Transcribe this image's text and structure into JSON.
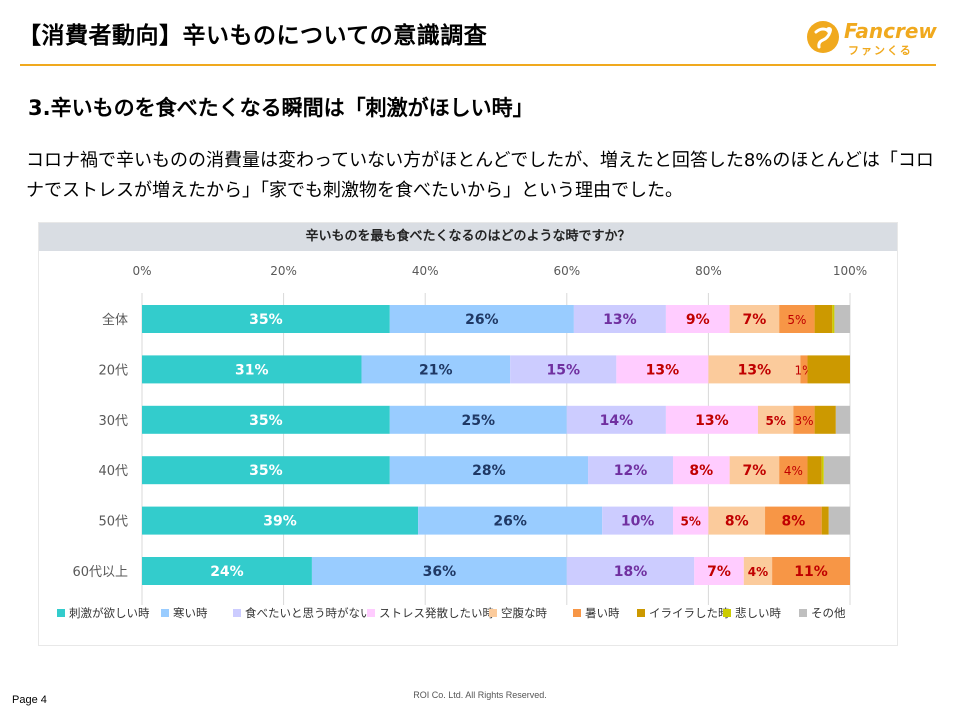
{
  "header": {
    "title": "【消費者動向】辛いものについての意識調査"
  },
  "logo": {
    "text": "Fancrew",
    "sub": "ファンくる",
    "accent": "#f0a91e"
  },
  "section": {
    "title": "3.辛いものを食べたくなる瞬間は「刺激がほしい時」"
  },
  "description": "コロナ禍で辛いものの消費量は変わっていない方がほとんどでしたが、増えたと回答した8%のほとんどは「コロナでストレスが増えたから」「家でも刺激物を食べたいから」という理由でした。",
  "footer": {
    "page": "Page 4",
    "copyright": "ROI Co. Ltd. All Rights Reserved."
  },
  "chart_data": {
    "type": "bar",
    "orientation": "horizontal",
    "stacked": true,
    "title": "辛いものを最も食べたくなるのはどのような時ですか？",
    "xlim": [
      0,
      100
    ],
    "xticks": [
      "0%",
      "20%",
      "40%",
      "60%",
      "80%",
      "100%"
    ],
    "grid": true,
    "legend_position": "bottom",
    "categories": [
      "全体",
      "20代",
      "30代",
      "40代",
      "50代",
      "60代以上"
    ],
    "series": [
      {
        "name": "刺激が欲しい時",
        "color": "#33cccc",
        "label_color": "#ffffff",
        "values": [
          35,
          31,
          35,
          35,
          39,
          24
        ],
        "labels": [
          "35%",
          "31%",
          "35%",
          "35%",
          "39%",
          "24%"
        ]
      },
      {
        "name": "寒い時",
        "color": "#99ccff",
        "label_color": "#1f3864",
        "values": [
          26,
          21,
          25,
          28,
          26,
          36
        ],
        "labels": [
          "26%",
          "21%",
          "25%",
          "28%",
          "26%",
          "36%"
        ]
      },
      {
        "name": "食べたいと思う時がない",
        "color": "#ccccff",
        "label_color": "#7030a0",
        "values": [
          13,
          15,
          14,
          12,
          10,
          18
        ],
        "labels": [
          "13%",
          "15%",
          "14%",
          "12%",
          "10%",
          "18%"
        ]
      },
      {
        "name": "ストレス発散したい時",
        "color": "#ffccff",
        "label_color": "#c00000",
        "values": [
          9,
          13,
          13,
          8,
          5,
          7
        ],
        "labels": [
          "9%",
          "13%",
          "13%",
          "8%",
          "5%",
          "7%"
        ]
      },
      {
        "name": "空腹な時",
        "color": "#fbcb9c",
        "label_color": "#c00000",
        "values": [
          7,
          13,
          5,
          7,
          8,
          4
        ],
        "labels": [
          "7%",
          "13%",
          "5%",
          "7%",
          "8%",
          "4%"
        ]
      },
      {
        "name": "暑い時",
        "color": "#f79646",
        "label_color": "#c00000",
        "values": [
          5,
          1,
          3,
          4,
          8,
          11
        ],
        "labels": [
          "5%",
          "1%",
          "3%",
          "4%",
          "8%",
          "11%"
        ]
      },
      {
        "name": "イライラした時",
        "color": "#cc9900",
        "label_color": "#000000",
        "values": [
          2.5,
          6,
          3,
          2,
          1,
          0
        ],
        "labels": [
          "",
          "",
          "",
          "",
          "",
          ""
        ]
      },
      {
        "name": "悲しい時",
        "color": "#cccc00",
        "label_color": "#000000",
        "values": [
          0.3,
          0,
          0,
          0.3,
          0,
          0
        ],
        "labels": [
          "",
          "",
          "",
          "",
          "",
          ""
        ]
      },
      {
        "name": "その他",
        "color": "#bfbfbf",
        "label_color": "#000000",
        "values": [
          2.2,
          0,
          2,
          3.7,
          3,
          0
        ],
        "labels": [
          "",
          "",
          "",
          "",
          "",
          ""
        ]
      }
    ]
  }
}
